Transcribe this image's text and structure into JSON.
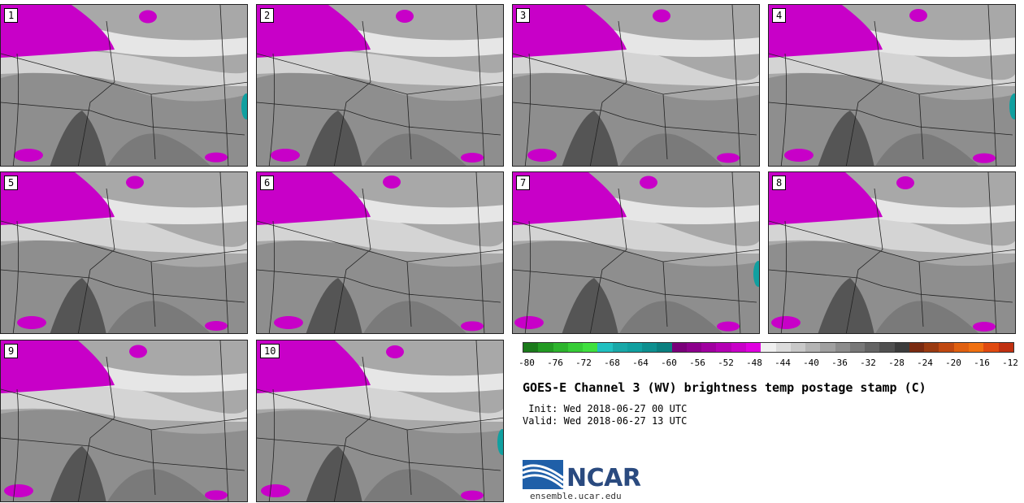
{
  "panels": [
    {
      "label": "1"
    },
    {
      "label": "2"
    },
    {
      "label": "3"
    },
    {
      "label": "4"
    },
    {
      "label": "5"
    },
    {
      "label": "6"
    },
    {
      "label": "7"
    },
    {
      "label": "8"
    },
    {
      "label": "9"
    },
    {
      "label": "10"
    }
  ],
  "colorbar": {
    "colors": [
      "#1a7a1a",
      "#229a22",
      "#2cb42c",
      "#36cc36",
      "#3fe03f",
      "#20c0c0",
      "#18a8a8",
      "#10a0a0",
      "#0d8f8f",
      "#0a7f7f",
      "#7a007a",
      "#8c008c",
      "#a000a0",
      "#b400b4",
      "#c800c8",
      "#e000e0",
      "#f0f0f0",
      "#dcdcdc",
      "#c8c8c8",
      "#b4b4b4",
      "#a0a0a0",
      "#8c8c8c",
      "#787878",
      "#646464",
      "#505050",
      "#3c3c3c",
      "#7a2a10",
      "#9a3a10",
      "#c04810",
      "#e06010",
      "#f07010",
      "#e04a10",
      "#c03010"
    ],
    "ticks": [
      "-80",
      "-76",
      "-72",
      "-68",
      "-64",
      "-60",
      "-56",
      "-52",
      "-48",
      "-44",
      "-40",
      "-36",
      "-32",
      "-28",
      "-24",
      "-20",
      "-16",
      "-12"
    ]
  },
  "title": "GOES-E Channel 3 (WV) brightness temp postage stamp (C)",
  "init_text": " Init: Wed 2018-06-27 00 UTC",
  "valid_text": "Valid: Wed 2018-06-27 13 UTC",
  "logo": {
    "name": "NCAR",
    "site": "ensemble.ucar.edu"
  }
}
